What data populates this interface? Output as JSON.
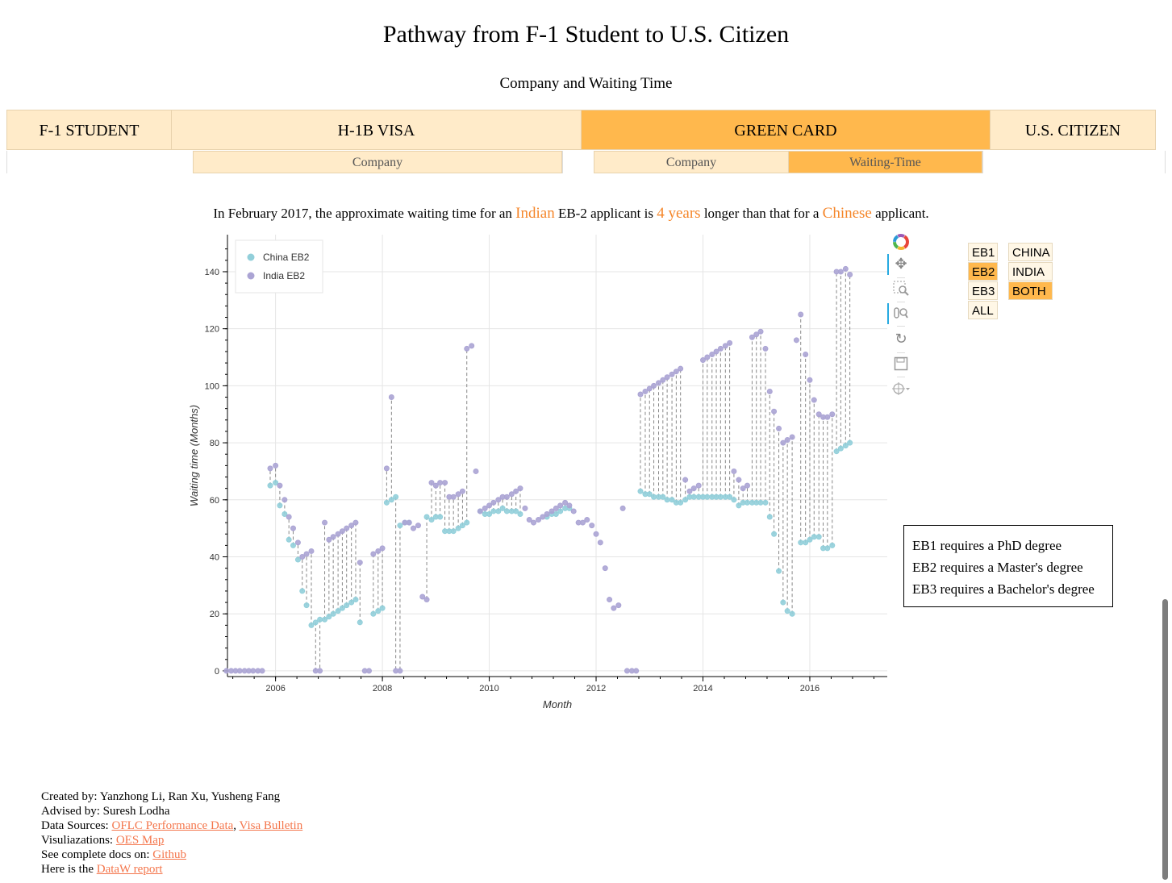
{
  "header": {
    "title": "Pathway from F-1 Student to U.S. Citizen",
    "subtitle": "Company and Waiting Time"
  },
  "nav": {
    "tabs": [
      "F-1 STUDENT",
      "H-1B VISA",
      "GREEN CARD",
      "U.S. CITIZEN"
    ],
    "active": "GREEN CARD"
  },
  "subnav": {
    "h1b_company": "Company",
    "gc_company": "Company",
    "gc_waiting": "Waiting-Time"
  },
  "sentence": {
    "p1": "In February 2017, the approximate waiting time for an ",
    "country1": "Indian",
    "p2": " EB-2 applicant is ",
    "years": "4 years",
    "p3": " longer than that for a ",
    "country2": "Chinese",
    "p4": " applicant."
  },
  "category_buttons": [
    "EB1",
    "EB2",
    "EB3",
    "ALL"
  ],
  "country_buttons": [
    "CHINA",
    "INDIA",
    "BOTH"
  ],
  "active_category": "EB2",
  "active_country": "BOTH",
  "toolbar": {
    "icons": [
      "bokeh-logo-icon",
      "pan-icon",
      "box-zoom-icon",
      "wheel-zoom-icon",
      "reset-icon",
      "save-icon",
      "hover-icon"
    ]
  },
  "requirements": [
    "EB1 requires a PhD degree",
    "EB2 requires a Master's degree",
    "EB3 requires a Bachelor's degree"
  ],
  "footer": {
    "created_label": "Created by: ",
    "created": "Yanzhong Li, Ran Xu, Yusheng Fang",
    "advised_label": "Advised by: ",
    "advised": "Suresh Lodha",
    "sources_label": "Data Sources: ",
    "source1": "OFLC Performance Data",
    "sep": ", ",
    "source2": "Visa Bulletin",
    "vis_label": "Visuliazations: ",
    "vis": "OES Map",
    "docs_label": "See complete docs on: ",
    "docs": "Github",
    "report_label": "Here is the ",
    "report": "DataW report"
  },
  "colors": {
    "china": "#92cfda",
    "india": "#aba4d4",
    "accent": "#ffb84d",
    "tab_bg": "#ffebc9",
    "highlight_text": "#f5862a",
    "link": "#f4764c"
  },
  "chart_data": {
    "type": "scatter",
    "xlabel": "Month",
    "ylabel": "Waiting time (Months)",
    "xlim": [
      2005.1,
      2017.45
    ],
    "ylim": [
      -2,
      153
    ],
    "xticks": [
      2006,
      2008,
      2010,
      2012,
      2014,
      2016
    ],
    "yticks": [
      0,
      20,
      40,
      60,
      80,
      100,
      120,
      140
    ],
    "grid": true,
    "legend_position": "top-left",
    "series": [
      {
        "name": "China EB2",
        "color": "#92cfda",
        "points": [
          [
            2005.9,
            65
          ],
          [
            2006.0,
            66
          ],
          [
            2006.08,
            58
          ],
          [
            2006.17,
            55
          ],
          [
            2006.25,
            46
          ],
          [
            2006.33,
            44
          ],
          [
            2006.42,
            39
          ],
          [
            2006.5,
            28
          ],
          [
            2006.58,
            23
          ],
          [
            2006.67,
            16
          ],
          [
            2006.75,
            17
          ],
          [
            2006.83,
            18
          ],
          [
            2006.92,
            18
          ],
          [
            2007.0,
            19
          ],
          [
            2007.08,
            20
          ],
          [
            2007.17,
            21
          ],
          [
            2007.25,
            22
          ],
          [
            2007.33,
            23
          ],
          [
            2007.42,
            24
          ],
          [
            2007.5,
            25
          ],
          [
            2007.58,
            17
          ],
          [
            2007.83,
            20
          ],
          [
            2007.92,
            21
          ],
          [
            2008.0,
            22
          ],
          [
            2008.08,
            59
          ],
          [
            2008.17,
            60
          ],
          [
            2008.25,
            61
          ],
          [
            2008.33,
            51
          ],
          [
            2008.42,
            52
          ],
          [
            2008.5,
            52
          ],
          [
            2008.83,
            54
          ],
          [
            2008.92,
            53
          ],
          [
            2009.0,
            54
          ],
          [
            2009.08,
            54
          ],
          [
            2009.17,
            49
          ],
          [
            2009.25,
            49
          ],
          [
            2009.33,
            49
          ],
          [
            2009.42,
            50
          ],
          [
            2009.5,
            51
          ],
          [
            2009.58,
            52
          ],
          [
            2009.83,
            56
          ],
          [
            2009.92,
            55
          ],
          [
            2010.0,
            55
          ],
          [
            2010.08,
            56
          ],
          [
            2010.17,
            56
          ],
          [
            2010.25,
            57
          ],
          [
            2010.33,
            56
          ],
          [
            2010.42,
            56
          ],
          [
            2010.5,
            56
          ],
          [
            2010.58,
            55
          ],
          [
            2011.08,
            54
          ],
          [
            2011.17,
            55
          ],
          [
            2011.25,
            55
          ],
          [
            2011.33,
            56
          ],
          [
            2011.42,
            57
          ],
          [
            2011.5,
            57
          ],
          [
            2012.83,
            63
          ],
          [
            2012.92,
            62
          ],
          [
            2013.0,
            62
          ],
          [
            2013.08,
            61
          ],
          [
            2013.17,
            61
          ],
          [
            2013.25,
            61
          ],
          [
            2013.33,
            60
          ],
          [
            2013.42,
            60
          ],
          [
            2013.5,
            59
          ],
          [
            2013.58,
            59
          ],
          [
            2013.67,
            60
          ],
          [
            2013.75,
            61
          ],
          [
            2013.83,
            61
          ],
          [
            2013.92,
            61
          ],
          [
            2014.0,
            61
          ],
          [
            2014.08,
            61
          ],
          [
            2014.17,
            61
          ],
          [
            2014.25,
            61
          ],
          [
            2014.33,
            61
          ],
          [
            2014.42,
            61
          ],
          [
            2014.5,
            61
          ],
          [
            2014.58,
            60
          ],
          [
            2014.67,
            58
          ],
          [
            2014.75,
            59
          ],
          [
            2014.83,
            59
          ],
          [
            2014.92,
            59
          ],
          [
            2015.0,
            59
          ],
          [
            2015.08,
            59
          ],
          [
            2015.17,
            59
          ],
          [
            2015.25,
            54
          ],
          [
            2015.33,
            48
          ],
          [
            2015.42,
            35
          ],
          [
            2015.5,
            24
          ],
          [
            2015.58,
            21
          ],
          [
            2015.67,
            20
          ],
          [
            2015.83,
            45
          ],
          [
            2015.92,
            45
          ],
          [
            2016.0,
            46
          ],
          [
            2016.08,
            47
          ],
          [
            2016.17,
            47
          ],
          [
            2016.25,
            43
          ],
          [
            2016.33,
            43
          ],
          [
            2016.42,
            44
          ],
          [
            2016.5,
            77
          ],
          [
            2016.58,
            78
          ],
          [
            2016.67,
            79
          ],
          [
            2016.75,
            80
          ]
        ]
      },
      {
        "name": "India EB2",
        "color": "#aba4d4",
        "points": [
          [
            2005.08,
            0
          ],
          [
            2005.17,
            0
          ],
          [
            2005.25,
            0
          ],
          [
            2005.33,
            0
          ],
          [
            2005.42,
            0
          ],
          [
            2005.5,
            0
          ],
          [
            2005.58,
            0
          ],
          [
            2005.67,
            0
          ],
          [
            2005.75,
            0
          ],
          [
            2005.9,
            71
          ],
          [
            2006.0,
            72
          ],
          [
            2006.08,
            65
          ],
          [
            2006.17,
            60
          ],
          [
            2006.25,
            54
          ],
          [
            2006.33,
            50
          ],
          [
            2006.42,
            45
          ],
          [
            2006.5,
            40
          ],
          [
            2006.58,
            41
          ],
          [
            2006.67,
            42
          ],
          [
            2006.75,
            0
          ],
          [
            2006.83,
            0
          ],
          [
            2006.92,
            52
          ],
          [
            2007.0,
            46
          ],
          [
            2007.08,
            47
          ],
          [
            2007.17,
            48
          ],
          [
            2007.25,
            49
          ],
          [
            2007.33,
            50
          ],
          [
            2007.42,
            51
          ],
          [
            2007.5,
            52
          ],
          [
            2007.58,
            38
          ],
          [
            2007.67,
            0
          ],
          [
            2007.75,
            0
          ],
          [
            2007.83,
            41
          ],
          [
            2007.92,
            42
          ],
          [
            2008.0,
            43
          ],
          [
            2008.08,
            71
          ],
          [
            2008.17,
            96
          ],
          [
            2008.25,
            0
          ],
          [
            2008.33,
            0
          ],
          [
            2008.42,
            52
          ],
          [
            2008.5,
            52
          ],
          [
            2008.58,
            50
          ],
          [
            2008.67,
            51
          ],
          [
            2008.75,
            26
          ],
          [
            2008.83,
            25
          ],
          [
            2008.92,
            66
          ],
          [
            2009.0,
            65
          ],
          [
            2009.08,
            66
          ],
          [
            2009.17,
            66
          ],
          [
            2009.25,
            61
          ],
          [
            2009.33,
            61
          ],
          [
            2009.42,
            62
          ],
          [
            2009.5,
            63
          ],
          [
            2009.58,
            113
          ],
          [
            2009.67,
            114
          ],
          [
            2009.75,
            70
          ],
          [
            2009.83,
            56
          ],
          [
            2009.92,
            57
          ],
          [
            2010.0,
            58
          ],
          [
            2010.08,
            59
          ],
          [
            2010.17,
            60
          ],
          [
            2010.25,
            61
          ],
          [
            2010.33,
            61
          ],
          [
            2010.42,
            62
          ],
          [
            2010.5,
            63
          ],
          [
            2010.58,
            64
          ],
          [
            2010.67,
            57
          ],
          [
            2010.75,
            53
          ],
          [
            2010.83,
            52
          ],
          [
            2010.92,
            53
          ],
          [
            2011.0,
            54
          ],
          [
            2011.08,
            55
          ],
          [
            2011.17,
            56
          ],
          [
            2011.25,
            57
          ],
          [
            2011.33,
            58
          ],
          [
            2011.42,
            59
          ],
          [
            2011.5,
            58
          ],
          [
            2011.58,
            56
          ],
          [
            2011.67,
            52
          ],
          [
            2011.75,
            52
          ],
          [
            2011.83,
            53
          ],
          [
            2011.92,
            51
          ],
          [
            2012.0,
            48
          ],
          [
            2012.08,
            45
          ],
          [
            2012.17,
            36
          ],
          [
            2012.25,
            25
          ],
          [
            2012.33,
            22
          ],
          [
            2012.42,
            23
          ],
          [
            2012.5,
            57
          ],
          [
            2012.58,
            0
          ],
          [
            2012.67,
            0
          ],
          [
            2012.75,
            0
          ],
          [
            2012.83,
            97
          ],
          [
            2012.92,
            98
          ],
          [
            2013.0,
            99
          ],
          [
            2013.08,
            100
          ],
          [
            2013.17,
            101
          ],
          [
            2013.25,
            102
          ],
          [
            2013.33,
            103
          ],
          [
            2013.42,
            104
          ],
          [
            2013.5,
            105
          ],
          [
            2013.58,
            106
          ],
          [
            2013.67,
            67
          ],
          [
            2013.75,
            63
          ],
          [
            2013.83,
            64
          ],
          [
            2013.92,
            65
          ],
          [
            2014.0,
            109
          ],
          [
            2014.08,
            110
          ],
          [
            2014.17,
            111
          ],
          [
            2014.25,
            112
          ],
          [
            2014.33,
            113
          ],
          [
            2014.42,
            114
          ],
          [
            2014.5,
            115
          ],
          [
            2014.58,
            70
          ],
          [
            2014.67,
            67
          ],
          [
            2014.75,
            64
          ],
          [
            2014.83,
            65
          ],
          [
            2014.92,
            117
          ],
          [
            2015.0,
            118
          ],
          [
            2015.08,
            119
          ],
          [
            2015.17,
            113
          ],
          [
            2015.25,
            98
          ],
          [
            2015.33,
            91
          ],
          [
            2015.42,
            85
          ],
          [
            2015.5,
            80
          ],
          [
            2015.58,
            81
          ],
          [
            2015.67,
            82
          ],
          [
            2015.75,
            116
          ],
          [
            2015.83,
            125
          ],
          [
            2015.92,
            111
          ],
          [
            2016.0,
            102
          ],
          [
            2016.08,
            95
          ],
          [
            2016.17,
            90
          ],
          [
            2016.25,
            89
          ],
          [
            2016.33,
            89
          ],
          [
            2016.42,
            90
          ],
          [
            2016.5,
            140
          ],
          [
            2016.58,
            140
          ],
          [
            2016.67,
            141
          ],
          [
            2016.75,
            139
          ]
        ]
      }
    ]
  }
}
